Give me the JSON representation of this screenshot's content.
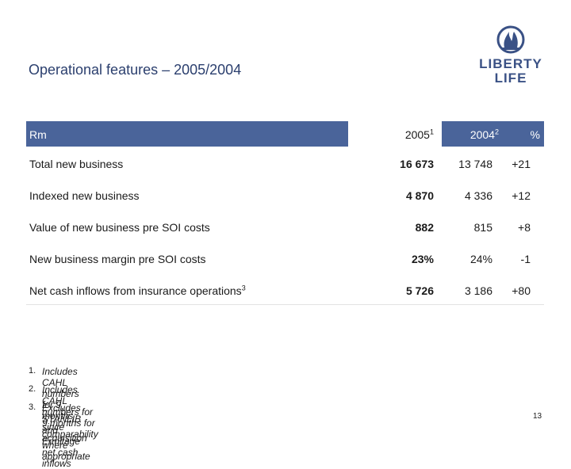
{
  "title": "Operational features – 2005/2004",
  "logo": {
    "line1": "LIBERTY",
    "line2": "LIFE",
    "icon": "flame-shield-icon",
    "color": "#3a5185"
  },
  "table": {
    "header": {
      "label": "Rm",
      "col2005": "2005",
      "col2005_sup": "1",
      "col2004": "2004",
      "col2004_sup": "2",
      "pct": "%"
    },
    "rows": [
      {
        "label": "Total new business",
        "label_sup": "",
        "v2005": "16 673",
        "v2004": "13 748",
        "pct": "+21"
      },
      {
        "label": "Indexed new business",
        "label_sup": "",
        "v2005": "4 870",
        "v2004": "4 336",
        "pct": "+12"
      },
      {
        "label": "Value of new business pre SOI costs",
        "label_sup": "",
        "v2005": "882",
        "v2004": "815",
        "pct": "+8"
      },
      {
        "label": "New business margin pre SOI costs",
        "label_sup": "",
        "v2005": "23%",
        "v2004": "24%",
        "pct": "-1"
      },
      {
        "label": "Net cash inflows from insurance operations",
        "label_sup": "3",
        "v2005": "5 726",
        "v2004": "3 186",
        "pct": "+80"
      }
    ]
  },
  "footnotes": [
    {
      "num": "1.",
      "text": "Includes CAHL numbers for 9 months since acquisition"
    },
    {
      "num": "2.",
      "text": "Includes CAHL numbers for 9 months for comparability where appropriate"
    },
    {
      "num": "3.",
      "text": "Excludes STANLIB and Ermitage net cash inflows"
    }
  ],
  "page_number": "13",
  "colors": {
    "header_bg": "#4a649a",
    "title": "#2b3f6e"
  }
}
